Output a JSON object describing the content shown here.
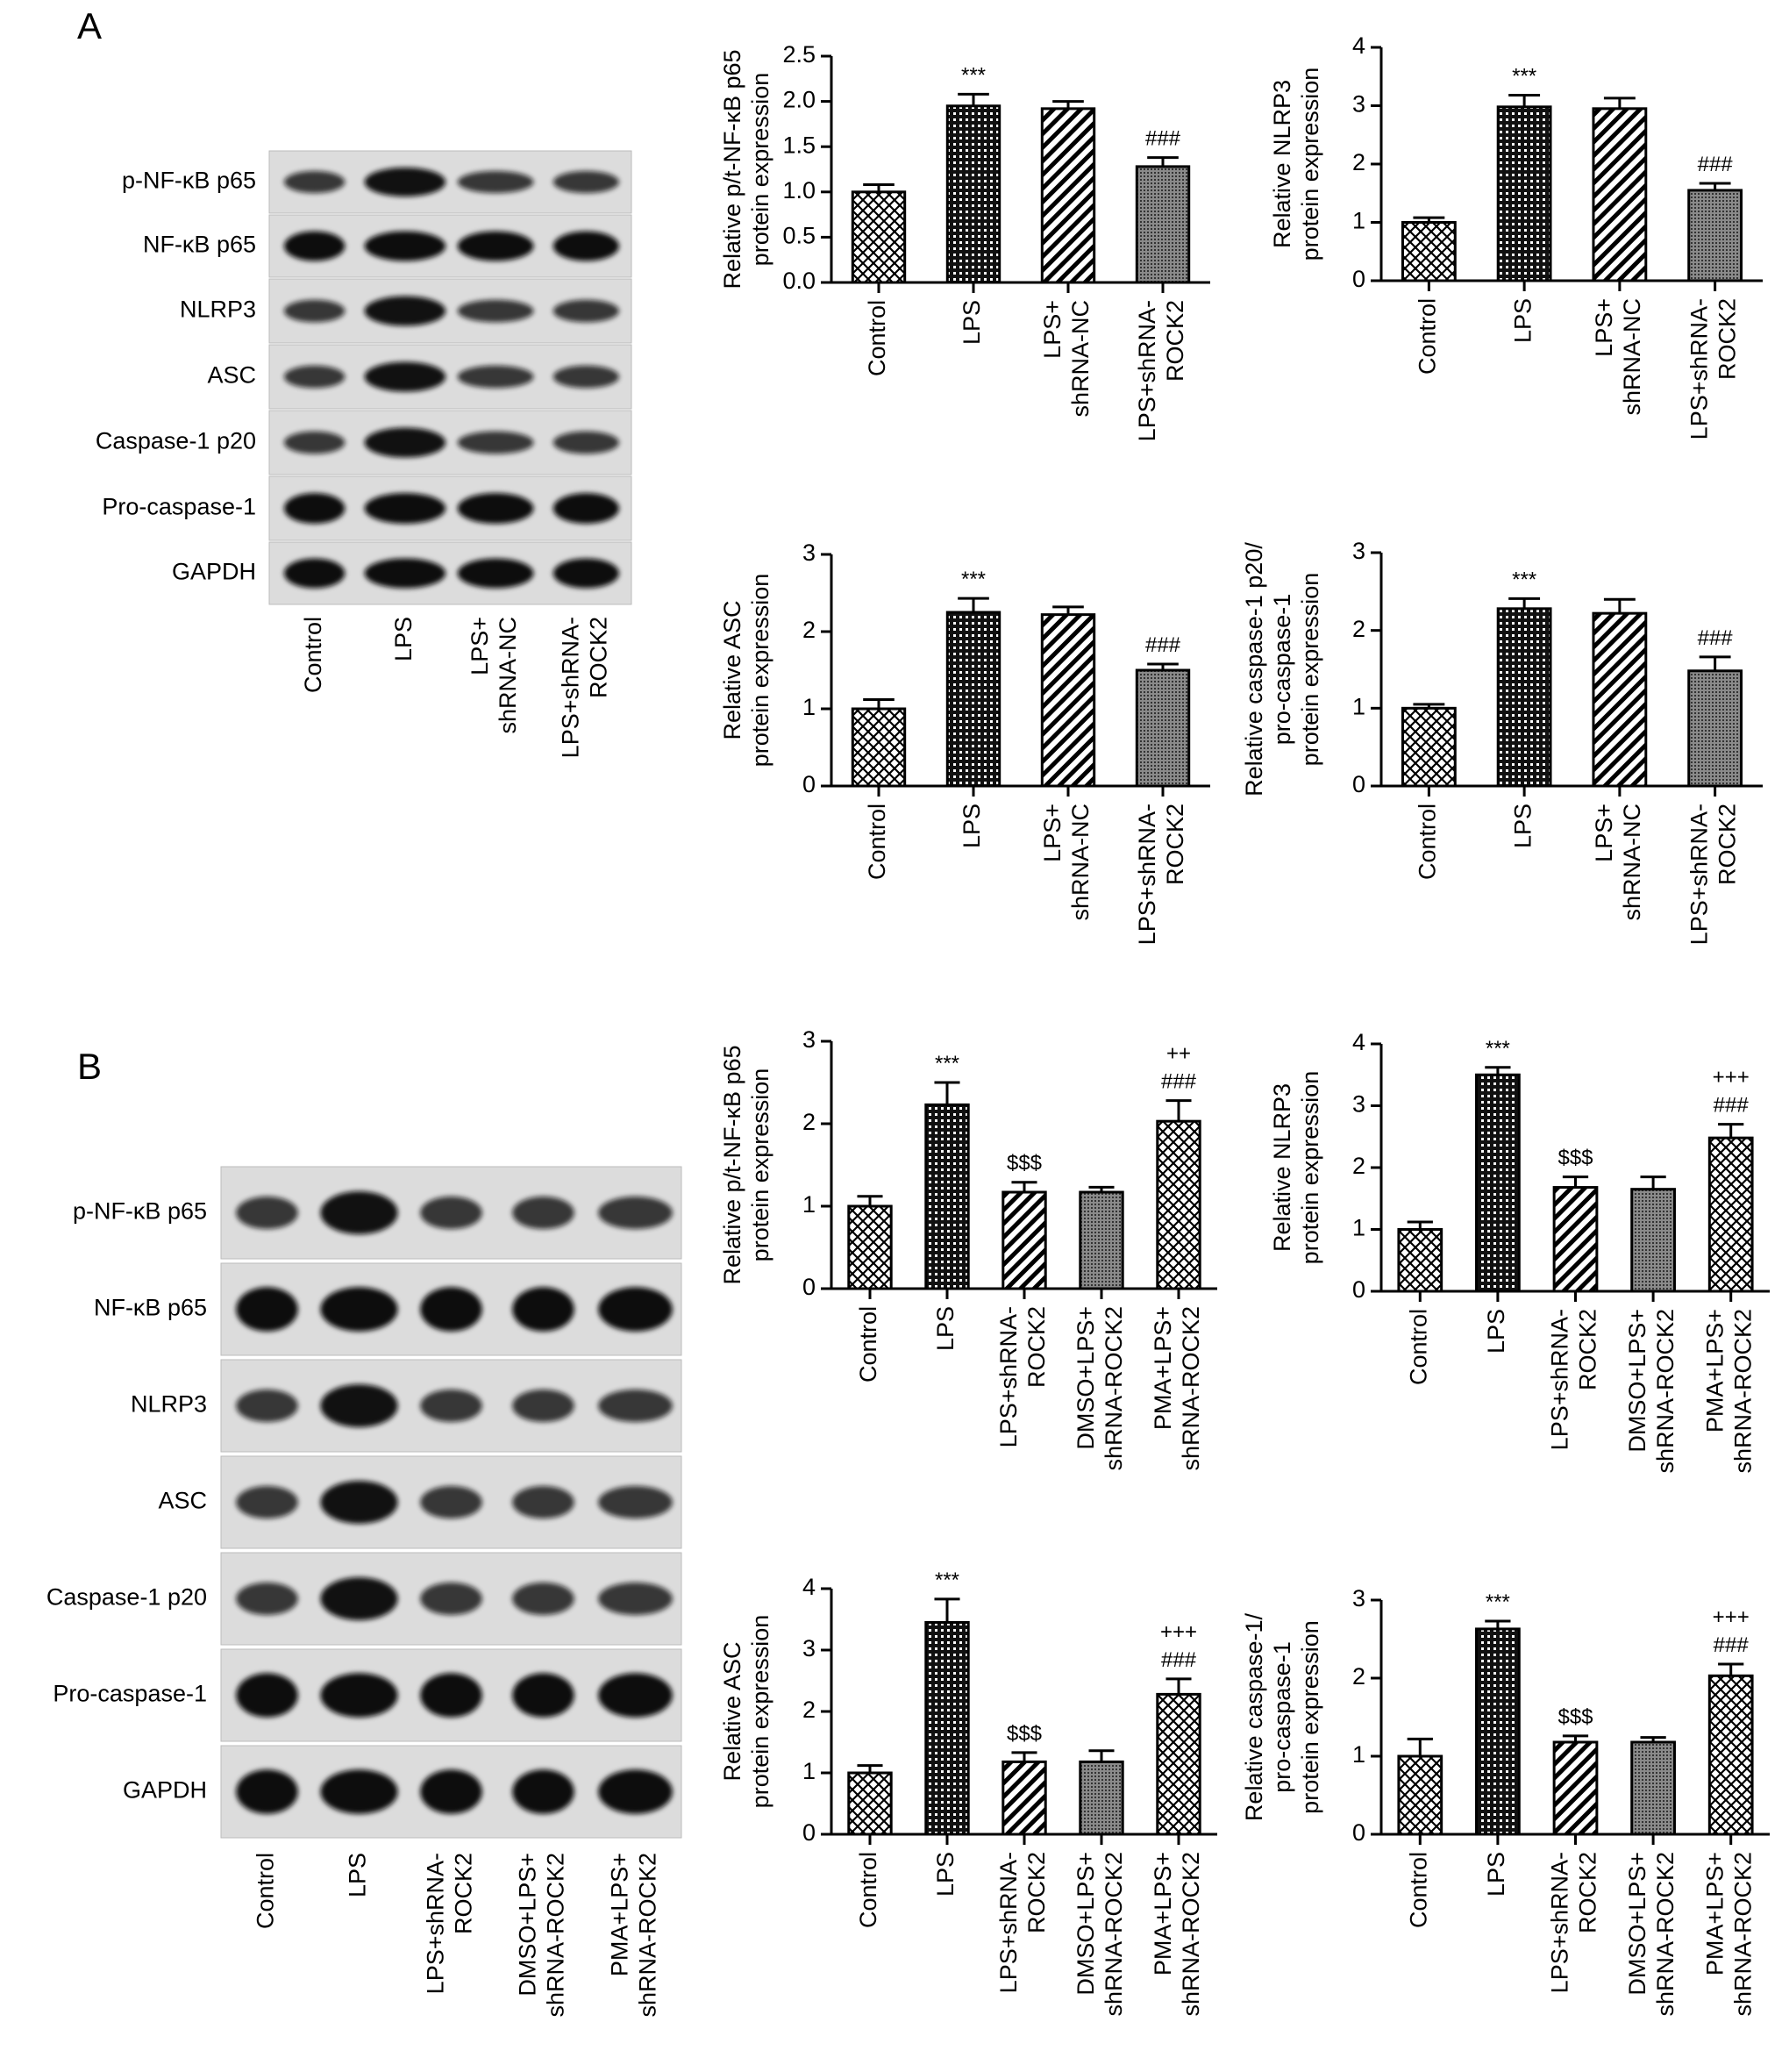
{
  "panel_labels": [
    "A",
    "B"
  ],
  "blots": [
    {
      "rows": [
        "p-NF-κB p65",
        "NF-κB p65",
        "NLRP3",
        "ASC",
        "Caspase-1 p20",
        "Pro-caspase-1",
        "GAPDH"
      ],
      "lanes": [
        "Control",
        "LPS",
        "LPS+\nshRNA-NC",
        "LPS+shRNA-\nROCK2"
      ]
    },
    {
      "rows": [
        "p-NF-κB p65",
        "NF-κB p65",
        "NLRP3",
        "ASC",
        "Caspase-1 p20",
        "Pro-caspase-1",
        "GAPDH"
      ],
      "lanes": [
        "Control",
        "LPS",
        "LPS+shRNA-\nROCK2",
        "DMSO+LPS+\nshRNA-ROCK2",
        "PMA+LPS+\nshRNA-ROCK2"
      ]
    }
  ],
  "chart_data": [
    {
      "type": "bar",
      "y_label": "Relative p/t-NF-κB p65\nprotein expression",
      "color": "#000000",
      "categories": [
        "Control",
        "LPS",
        "LPS+\nshRNA-NC",
        "LPS+shRNA-\nROCK2"
      ],
      "values": [
        1.0,
        1.95,
        1.92,
        1.28
      ],
      "errors": [
        0.08,
        0.13,
        0.08,
        0.1
      ],
      "annotations": [
        null,
        "***",
        null,
        "###"
      ],
      "patterns": [
        "checker",
        "grid",
        "stripes",
        "dots"
      ],
      "ylim": [
        0,
        2.5
      ],
      "yticks": [
        {
          "value": 0,
          "label": "0.0"
        },
        0.5,
        {
          "value": 1,
          "label": "1.0"
        },
        1.5,
        {
          "value": 2,
          "label": "2.0"
        },
        2.5
      ]
    },
    {
      "type": "bar",
      "y_label": "Relative NLRP3\nprotein expression",
      "color": "#000000",
      "categories": [
        "Control",
        "LPS",
        "LPS+\nshRNA-NC",
        "LPS+shRNA-\nROCK2"
      ],
      "values": [
        1.0,
        2.98,
        2.95,
        1.55
      ],
      "errors": [
        0.08,
        0.2,
        0.18,
        0.12
      ],
      "annotations": [
        null,
        "***",
        null,
        "###"
      ],
      "patterns": [
        "checker",
        "grid",
        "stripes",
        "dots"
      ],
      "ylim": [
        0,
        4
      ],
      "yticks": [
        0,
        1,
        2,
        3,
        4
      ]
    },
    {
      "type": "bar",
      "y_label": "Relative ASC\nprotein expression",
      "color": "#000000",
      "categories": [
        "Control",
        "LPS",
        "LPS+\nshRNA-NC",
        "LPS+shRNA-\nROCK2"
      ],
      "values": [
        1.0,
        2.25,
        2.22,
        1.5
      ],
      "errors": [
        0.12,
        0.18,
        0.1,
        0.08
      ],
      "annotations": [
        null,
        "***",
        null,
        "###"
      ],
      "patterns": [
        "checker",
        "grid",
        "stripes",
        "dots"
      ],
      "ylim": [
        0,
        3
      ],
      "yticks": [
        0,
        1,
        2,
        3
      ]
    },
    {
      "type": "bar",
      "y_label": "Relative caspase-1 p20/\npro-caspase-1\nprotein expression",
      "color": "#000000",
      "categories": [
        "Control",
        "LPS",
        "LPS+\nshRNA-NC",
        "LPS+shRNA-\nROCK2"
      ],
      "values": [
        1.0,
        2.28,
        2.22,
        1.48
      ],
      "errors": [
        0.05,
        0.13,
        0.18,
        0.18
      ],
      "annotations": [
        null,
        "***",
        null,
        "###"
      ],
      "patterns": [
        "checker",
        "grid",
        "stripes",
        "dots"
      ],
      "ylim": [
        0,
        3
      ],
      "yticks": [
        0,
        1,
        2,
        3
      ]
    },
    {
      "type": "bar",
      "y_label": "Relative p/t-NF-κB p65\nprotein expression",
      "color": "#000000",
      "categories": [
        "Control",
        "LPS",
        "LPS+shRNA-\nROCK2",
        "DMSO+LPS+\nshRNA-ROCK2",
        "PMA+LPS+\nshRNA-ROCK2"
      ],
      "values": [
        1.0,
        2.23,
        1.17,
        1.17,
        2.03
      ],
      "errors": [
        0.12,
        0.27,
        0.12,
        0.06,
        0.25
      ],
      "annotations": [
        null,
        "***",
        "$$$",
        null,
        "++\n###"
      ],
      "patterns": [
        "checker",
        "grid",
        "stripes",
        "dots",
        "checker"
      ],
      "ylim": [
        0,
        3
      ],
      "yticks": [
        0,
        1,
        2,
        3
      ]
    },
    {
      "type": "bar",
      "y_label": "Relative NLRP3\nprotein expression",
      "color": "#000000",
      "categories": [
        "Control",
        "LPS",
        "LPS+shRNA-\nROCK2",
        "DMSO+LPS+\nshRNA-ROCK2",
        "PMA+LPS+\nshRNA-ROCK2"
      ],
      "values": [
        1.0,
        3.5,
        1.68,
        1.65,
        2.48
      ],
      "errors": [
        0.12,
        0.12,
        0.17,
        0.2,
        0.22
      ],
      "annotations": [
        null,
        "***",
        "$$$",
        null,
        "+++\n###"
      ],
      "patterns": [
        "checker",
        "grid",
        "stripes",
        "dots",
        "checker"
      ],
      "ylim": [
        0,
        4
      ],
      "yticks": [
        0,
        1,
        2,
        3,
        4
      ]
    },
    {
      "type": "bar",
      "y_label": "Relative ASC\nprotein expression",
      "color": "#000000",
      "categories": [
        "Control",
        "LPS",
        "LPS+shRNA-\nROCK2",
        "DMSO+LPS+\nshRNA-ROCK2",
        "PMA+LPS+\nshRNA-ROCK2"
      ],
      "values": [
        1.0,
        3.45,
        1.18,
        1.18,
        2.28
      ],
      "errors": [
        0.12,
        0.38,
        0.15,
        0.18,
        0.25
      ],
      "annotations": [
        null,
        "***",
        "$$$",
        null,
        "+++\n###"
      ],
      "patterns": [
        "checker",
        "grid",
        "stripes",
        "dots",
        "checker"
      ],
      "ylim": [
        0,
        4
      ],
      "yticks": [
        0,
        1,
        2,
        3,
        4
      ]
    },
    {
      "type": "bar",
      "y_label": "Relative caspase-1/\npro-caspase-1\nprotein expression",
      "color": "#000000",
      "categories": [
        "Control",
        "LPS",
        "LPS+shRNA-\nROCK2",
        "DMSO+LPS+\nshRNA-ROCK2",
        "PMA+LPS+\nshRNA-ROCK2"
      ],
      "values": [
        1.0,
        2.63,
        1.18,
        1.18,
        2.03
      ],
      "errors": [
        0.22,
        0.1,
        0.08,
        0.06,
        0.15
      ],
      "annotations": [
        null,
        "***",
        "$$$",
        null,
        "+++\n###"
      ],
      "patterns": [
        "checker",
        "grid",
        "stripes",
        "dots",
        "checker"
      ],
      "ylim": [
        0,
        3
      ],
      "yticks": [
        0,
        1,
        2,
        3
      ]
    }
  ]
}
